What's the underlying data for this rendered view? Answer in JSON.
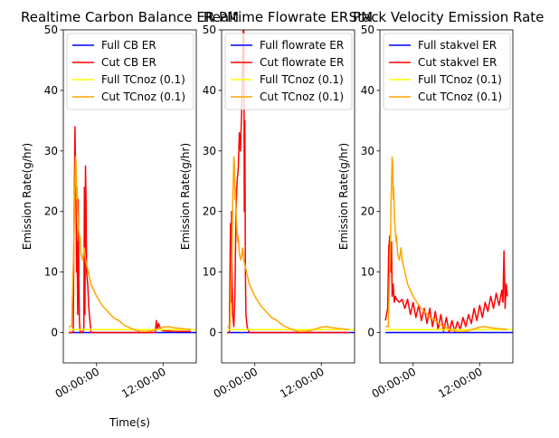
{
  "chart_data": [
    {
      "type": "line",
      "title": "Realtime Carbon Balance ER PM",
      "xlabel": "Time(s)",
      "ylabel": "Emission Rate(g/hr)",
      "ylim": [
        -5,
        50
      ],
      "yticks": [
        0,
        10,
        20,
        30,
        40,
        50
      ],
      "xticks": [
        "00:00:00",
        "12:00:00"
      ],
      "xlim": [
        -6,
        18
      ],
      "legend_position": "top-left",
      "series": [
        {
          "name": "Full CB ER",
          "color": "#0000ff",
          "x": [
            -5,
            18
          ],
          "y": [
            0,
            0
          ]
        },
        {
          "name": "Cut CB ER",
          "color": "#ff0000",
          "x": [
            -5,
            -4.2,
            -4.1,
            -3.9,
            -3.7,
            -3.6,
            -3.5,
            -3.4,
            -3.3,
            -3.2,
            -3.1,
            -3.0,
            -2.9,
            -2.6,
            -2.3,
            -2.2,
            -2.1,
            -2.0,
            -1.9,
            -1.8,
            -1.6,
            -1.4,
            -1.0,
            0,
            4,
            8,
            10.6,
            10.8,
            11.0,
            11.2,
            11.6,
            12,
            14,
            16,
            17
          ],
          "y": [
            0,
            0,
            14,
            34,
            20,
            10,
            15,
            3,
            22,
            8,
            2,
            0.5,
            0,
            0,
            0.5,
            24,
            3,
            27.5,
            22,
            10,
            8,
            4,
            0,
            0,
            0,
            0,
            0,
            2,
            0.5,
            1.5,
            0.5,
            0.3,
            0.2,
            0.2,
            0.2
          ]
        },
        {
          "name": "Full TCnoz (0.1)",
          "color": "#ffff00",
          "x": [
            -5,
            18
          ],
          "y": [
            0.5,
            0.5
          ]
        },
        {
          "name": "Cut TCnoz (0.1)",
          "color": "#ffa500",
          "x": [
            -5,
            -4.5,
            -4.3,
            -4.1,
            -4.0,
            -3.9,
            -3.8,
            -3.7,
            -3.6,
            -3.5,
            -3.4,
            -3.3,
            -3.1,
            -3.0,
            -2.8,
            -2.5,
            -2.2,
            -2.0,
            -1.5,
            -1.0,
            0,
            1,
            2,
            3,
            4,
            5,
            6,
            7,
            8,
            9,
            10,
            11,
            12,
            13,
            14,
            15,
            16,
            17
          ],
          "y": [
            1,
            1,
            8,
            14,
            22,
            25,
            29,
            28,
            22,
            24,
            20,
            18,
            15,
            16,
            13,
            12,
            14,
            12,
            10,
            8,
            6,
            4.5,
            3.5,
            2.5,
            2,
            1.2,
            0.8,
            0.4,
            0.2,
            0.2,
            0.3,
            0.6,
            0.9,
            1,
            0.8,
            0.7,
            0.6,
            0.5
          ]
        }
      ]
    },
    {
      "type": "line",
      "title": "Realtime Flowrate ER PM",
      "xlabel": "",
      "ylabel": "Emission Rate(g/hr)",
      "ylim": [
        -5,
        50
      ],
      "yticks": [
        0,
        10,
        20,
        30,
        40,
        50
      ],
      "xticks": [
        "00:00:00",
        "12:00:00"
      ],
      "xlim": [
        -6,
        18
      ],
      "legend_position": "top-left",
      "series": [
        {
          "name": "Full flowrate ER",
          "color": "#0000ff",
          "x": [
            -5,
            18
          ],
          "y": [
            0,
            0
          ]
        },
        {
          "name": "Cut flowrate ER",
          "color": "#ff0000",
          "x": [
            -5,
            -4.6,
            -4.4,
            -4.3,
            -4.2,
            -4.1,
            -4.0,
            -3.9,
            -3.8,
            -3.6,
            -3.4,
            -3.2,
            -3.0,
            -2.8,
            -2.6,
            -2.4,
            -2.2,
            -2.0,
            -1.9,
            -1.8,
            -1.7,
            -1.6,
            -1.4,
            -1.2,
            -1.0,
            -0.5,
            0,
            4,
            8,
            12,
            17
          ],
          "y": [
            0,
            0,
            18,
            5,
            20,
            8,
            3,
            2,
            1,
            6,
            20,
            25,
            27,
            33,
            30,
            36,
            45,
            53,
            20,
            35,
            10,
            3,
            1,
            0.5,
            0,
            0,
            0,
            0,
            0,
            0,
            0
          ]
        },
        {
          "name": "Full TCnoz (0.1)",
          "color": "#ffff00",
          "x": [
            -5,
            18
          ],
          "y": [
            0.5,
            0.5
          ]
        },
        {
          "name": "Cut TCnoz (0.1)",
          "color": "#ffa500",
          "x": [
            -5,
            -4.5,
            -4.3,
            -4.1,
            -4.0,
            -3.9,
            -3.8,
            -3.7,
            -3.6,
            -3.5,
            -3.4,
            -3.3,
            -3.1,
            -3.0,
            -2.8,
            -2.5,
            -2.2,
            -2.0,
            -1.5,
            -1.0,
            0,
            1,
            2,
            3,
            4,
            5,
            6,
            7,
            8,
            9,
            10,
            11,
            12,
            13,
            14,
            15,
            16,
            17
          ],
          "y": [
            1,
            1,
            8,
            14,
            22,
            25,
            29,
            28,
            22,
            24,
            20,
            18,
            15,
            16,
            13,
            12,
            14,
            12,
            10,
            8,
            6,
            4.5,
            3.5,
            2.5,
            2,
            1.2,
            0.8,
            0.4,
            0.2,
            0.2,
            0.3,
            0.6,
            0.9,
            1,
            0.8,
            0.7,
            0.6,
            0.5
          ]
        }
      ]
    },
    {
      "type": "line",
      "title": "Stack Velocity Emission Rate",
      "xlabel": "",
      "ylabel": "Emission Rate(g/hr)",
      "ylim": [
        -5,
        50
      ],
      "yticks": [
        0,
        10,
        20,
        30,
        40,
        50
      ],
      "xticks": [
        "00:00:00",
        "12:00:00"
      ],
      "xlim": [
        -6,
        18
      ],
      "legend_position": "top-left",
      "series": [
        {
          "name": "Full stakvel ER",
          "color": "#0000ff",
          "x": [
            -5,
            18
          ],
          "y": [
            0,
            0
          ]
        },
        {
          "name": "Cut stakvel ER",
          "color": "#ff0000",
          "x": [
            -5,
            -4.6,
            -4.4,
            -4.2,
            -4.0,
            -3.9,
            -3.8,
            -3.6,
            -3.4,
            -3.2,
            -3.0,
            -2.5,
            -2.0,
            -1.5,
            -1.0,
            -0.5,
            0,
            0.5,
            1,
            1.5,
            2,
            2.5,
            3,
            3.5,
            4,
            4.5,
            5,
            5.5,
            6,
            6.5,
            7,
            7.5,
            8,
            8.5,
            9,
            9.5,
            10,
            10.5,
            11,
            11.5,
            12,
            12.5,
            13,
            13.5,
            14,
            14.5,
            15,
            15.5,
            16,
            16.2,
            16.4,
            16.6,
            16.8,
            17
          ],
          "y": [
            2,
            4,
            14,
            16,
            10,
            15,
            6,
            8,
            5,
            6,
            5.5,
            5,
            5.5,
            4,
            5.5,
            3,
            5,
            2.5,
            4.5,
            2,
            4,
            1.5,
            4,
            1,
            3.5,
            0.5,
            3,
            0.2,
            2.5,
            0,
            2,
            0.2,
            1.8,
            0.5,
            2.5,
            1,
            3,
            1.5,
            4,
            2,
            4.5,
            2.5,
            5,
            3.5,
            6,
            4,
            6.5,
            4.5,
            7,
            5,
            13.5,
            4,
            8,
            6
          ]
        },
        {
          "name": "Full TCnoz (0.1)",
          "color": "#ffff00",
          "x": [
            -5,
            18
          ],
          "y": [
            0.5,
            0.5
          ]
        },
        {
          "name": "Cut TCnoz (0.1)",
          "color": "#ffa500",
          "x": [
            -5,
            -4.5,
            -4.3,
            -4.1,
            -4.0,
            -3.9,
            -3.8,
            -3.7,
            -3.6,
            -3.5,
            -3.4,
            -3.3,
            -3.1,
            -3.0,
            -2.8,
            -2.5,
            -2.2,
            -2.0,
            -1.5,
            -1.0,
            0,
            1,
            2,
            3,
            4,
            5,
            6,
            7,
            8,
            9,
            10,
            11,
            12,
            13,
            14,
            15,
            16,
            17
          ],
          "y": [
            1,
            1,
            8,
            14,
            22,
            25,
            29,
            28,
            22,
            24,
            20,
            18,
            15,
            16,
            13,
            12,
            14,
            12,
            10,
            8,
            6,
            4.5,
            3.5,
            2.5,
            2,
            1.2,
            0.8,
            0.4,
            0.2,
            0.2,
            0.3,
            0.6,
            0.9,
            1,
            0.8,
            0.7,
            0.6,
            0.5
          ]
        }
      ]
    }
  ]
}
